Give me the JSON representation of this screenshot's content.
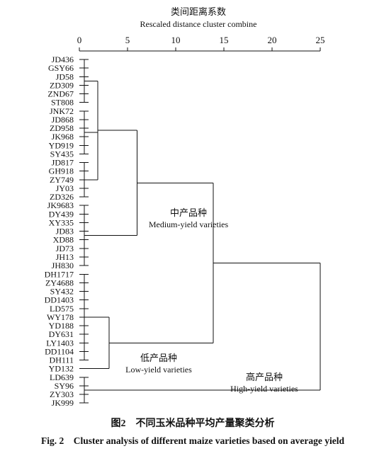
{
  "chart_data": {
    "type": "dendrogram",
    "axis_title_cn": "类间距离系数",
    "axis_title_en": "Rescaled distance cluster combine",
    "xlim": [
      0,
      25
    ],
    "ticks": [
      0,
      5,
      10,
      15,
      20,
      25
    ],
    "leaves": [
      "JD436",
      "GSY66",
      "JD58",
      "ZD309",
      "ZND67",
      "ST808",
      "JNK72",
      "JD868",
      "ZD958",
      "JK968",
      "YD919",
      "SY435",
      "JD817",
      "GH918",
      "ZY749",
      "JY03",
      "ZD326",
      "JK9683",
      "DY439",
      "XY335",
      "JD83",
      "XD88",
      "JD73",
      "JH13",
      "JH830",
      "DH1717",
      "ZY4688",
      "SY432",
      "DD1403",
      "LD575",
      "WY178",
      "YD188",
      "DY631",
      "LY1403",
      "DD1104",
      "DH111",
      "YD132",
      "LD639",
      "SY96",
      "ZY303",
      "JK999"
    ],
    "merges": [
      {
        "from_leaf": 0,
        "to_leaf": 5,
        "distance": 0.5
      },
      {
        "from_leaf": 6,
        "to_leaf": 11,
        "distance": 0.5
      },
      {
        "from_leaf": 12,
        "to_leaf": 16,
        "distance": 0.5
      },
      {
        "from_leaf": 17,
        "to_leaf": 24,
        "distance": 0.5
      },
      {
        "from_leaf": 25,
        "to_leaf": 35,
        "distance": 0.5
      },
      {
        "from_leaf": 37,
        "to_leaf": 40,
        "distance": 0.5
      },
      {
        "from_leaf": 0,
        "to_leaf": 16,
        "distance": 1.9
      },
      {
        "from_leaf": 0,
        "to_leaf": 24,
        "distance": 6.0
      },
      {
        "from_leaf": 25,
        "to_leaf": 36,
        "distance": 3.1
      },
      {
        "from_leaf": 0,
        "to_leaf": 36,
        "distance": 13.9
      },
      {
        "from_leaf": 0,
        "to_leaf": 40,
        "distance": 25.0
      }
    ],
    "clusters": [
      {
        "name_cn": "中产品种",
        "name_en": "Medium-yield varieties"
      },
      {
        "name_cn": "低产品种",
        "name_en": "Low-yield varieties"
      },
      {
        "name_cn": "高产品种",
        "name_en": "High-yield varieties"
      }
    ]
  },
  "caption": {
    "cn": "图2　不同玉米品种平均产量聚类分析",
    "en": "Fig. 2　Cluster analysis of different maize varieties based on average yield"
  }
}
